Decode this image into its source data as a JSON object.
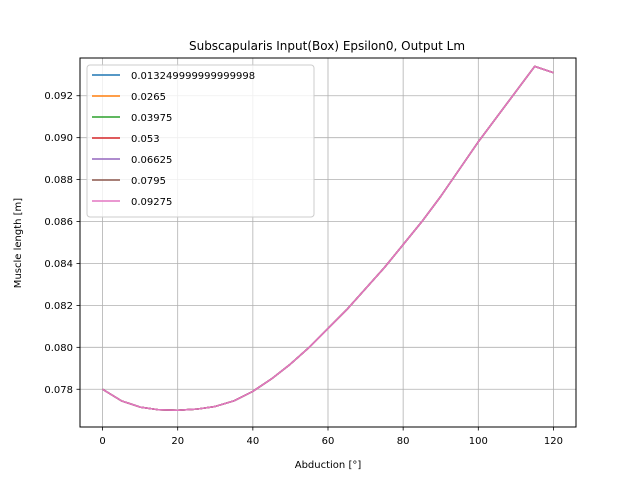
{
  "chart_data": {
    "type": "line",
    "title": "Subscapularis Input(Box) Epsilon0, Output Lm",
    "xlabel": "Abduction [°]",
    "ylabel": "Muscle length [m]",
    "xlim": [
      -6,
      126
    ],
    "ylim": [
      0.0762,
      0.0938
    ],
    "x_ticks": [
      0,
      20,
      40,
      60,
      80,
      100,
      120
    ],
    "y_ticks": [
      0.078,
      0.08,
      0.082,
      0.084,
      0.086,
      0.088,
      0.09,
      0.092
    ],
    "x_tick_labels": [
      "0",
      "20",
      "40",
      "60",
      "80",
      "100",
      "120"
    ],
    "y_tick_labels": [
      "0.078",
      "0.080",
      "0.082",
      "0.084",
      "0.086",
      "0.088",
      "0.090",
      "0.092"
    ],
    "grid": true,
    "legend_position": "top-left",
    "x": [
      0,
      5,
      10,
      15,
      20,
      25,
      30,
      35,
      40,
      45,
      50,
      55,
      60,
      65,
      70,
      75,
      80,
      85,
      90,
      95,
      100,
      105,
      110,
      115,
      120
    ],
    "series": [
      {
        "name": "0.013249999999999998",
        "color": "#1f77b4",
        "values": [
          0.078,
          0.07745,
          0.07715,
          0.07702,
          0.077,
          0.07705,
          0.07718,
          0.07745,
          0.0779,
          0.0785,
          0.0792,
          0.08,
          0.0809,
          0.0818,
          0.0828,
          0.0838,
          0.0849,
          0.086,
          0.0872,
          0.0885,
          0.0898,
          0.091,
          0.0922,
          0.0934,
          0.0931
        ]
      },
      {
        "name": "0.0265",
        "color": "#ff7f0e",
        "values": [
          0.078,
          0.07745,
          0.07715,
          0.07702,
          0.077,
          0.07705,
          0.07718,
          0.07745,
          0.0779,
          0.0785,
          0.0792,
          0.08,
          0.0809,
          0.0818,
          0.0828,
          0.0838,
          0.0849,
          0.086,
          0.0872,
          0.0885,
          0.0898,
          0.091,
          0.0922,
          0.0934,
          0.0931
        ]
      },
      {
        "name": "0.03975",
        "color": "#2ca02c",
        "values": [
          0.078,
          0.07745,
          0.07715,
          0.07702,
          0.077,
          0.07705,
          0.07718,
          0.07745,
          0.0779,
          0.0785,
          0.0792,
          0.08,
          0.0809,
          0.0818,
          0.0828,
          0.0838,
          0.0849,
          0.086,
          0.0872,
          0.0885,
          0.0898,
          0.091,
          0.0922,
          0.0934,
          0.0931
        ]
      },
      {
        "name": "0.053",
        "color": "#d62728",
        "values": [
          0.078,
          0.07745,
          0.07715,
          0.07702,
          0.077,
          0.07705,
          0.07718,
          0.07745,
          0.0779,
          0.0785,
          0.0792,
          0.08,
          0.0809,
          0.0818,
          0.0828,
          0.0838,
          0.0849,
          0.086,
          0.0872,
          0.0885,
          0.0898,
          0.091,
          0.0922,
          0.0934,
          0.0931
        ]
      },
      {
        "name": "0.06625",
        "color": "#9467bd",
        "values": [
          0.078,
          0.07745,
          0.07715,
          0.07702,
          0.077,
          0.07705,
          0.07718,
          0.07745,
          0.0779,
          0.0785,
          0.0792,
          0.08,
          0.0809,
          0.0818,
          0.0828,
          0.0838,
          0.0849,
          0.086,
          0.0872,
          0.0885,
          0.0898,
          0.091,
          0.0922,
          0.0934,
          0.0931
        ]
      },
      {
        "name": "0.0795",
        "color": "#8c564b",
        "values": [
          0.078,
          0.07745,
          0.07715,
          0.07702,
          0.077,
          0.07705,
          0.07718,
          0.07745,
          0.0779,
          0.0785,
          0.0792,
          0.08,
          0.0809,
          0.0818,
          0.0828,
          0.0838,
          0.0849,
          0.086,
          0.0872,
          0.0885,
          0.0898,
          0.091,
          0.0922,
          0.0934,
          0.0931
        ]
      },
      {
        "name": "0.09275",
        "color": "#e377c2",
        "values": [
          0.078,
          0.07745,
          0.07715,
          0.07702,
          0.077,
          0.07705,
          0.07718,
          0.07745,
          0.0779,
          0.0785,
          0.0792,
          0.08,
          0.0809,
          0.0818,
          0.0828,
          0.0838,
          0.0849,
          0.086,
          0.0872,
          0.0885,
          0.0898,
          0.091,
          0.0922,
          0.0934,
          0.0931
        ]
      }
    ]
  }
}
